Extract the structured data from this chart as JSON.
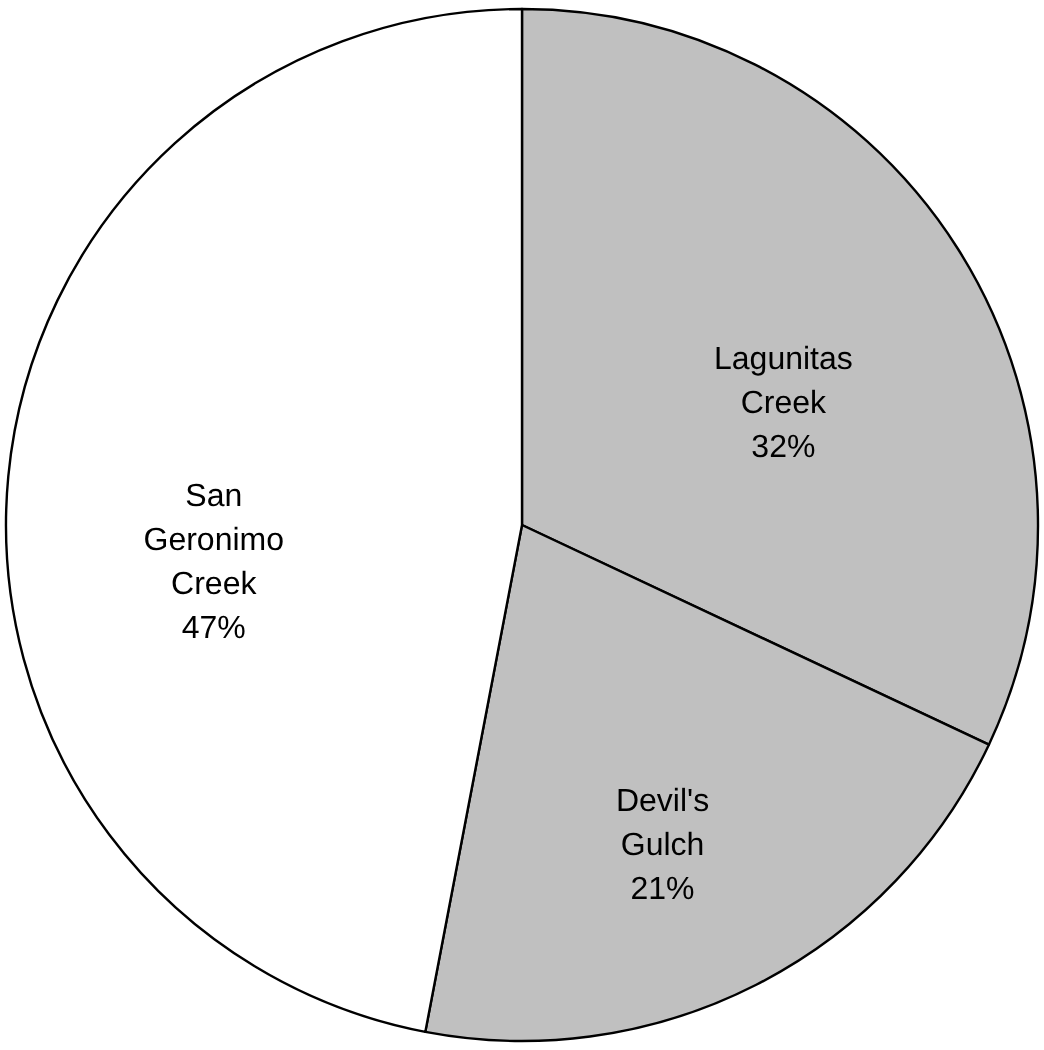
{
  "chart_data": {
    "type": "pie",
    "categories": [
      "Lagunitas Creek",
      "Devil's Gulch",
      "San Geronimo Creek"
    ],
    "values": [
      32,
      21,
      47
    ],
    "value_labels": [
      "32%",
      "21%",
      "47%"
    ],
    "colors": [
      "#c0c0c0",
      "#c0c0c0",
      "#ffffff"
    ]
  }
}
